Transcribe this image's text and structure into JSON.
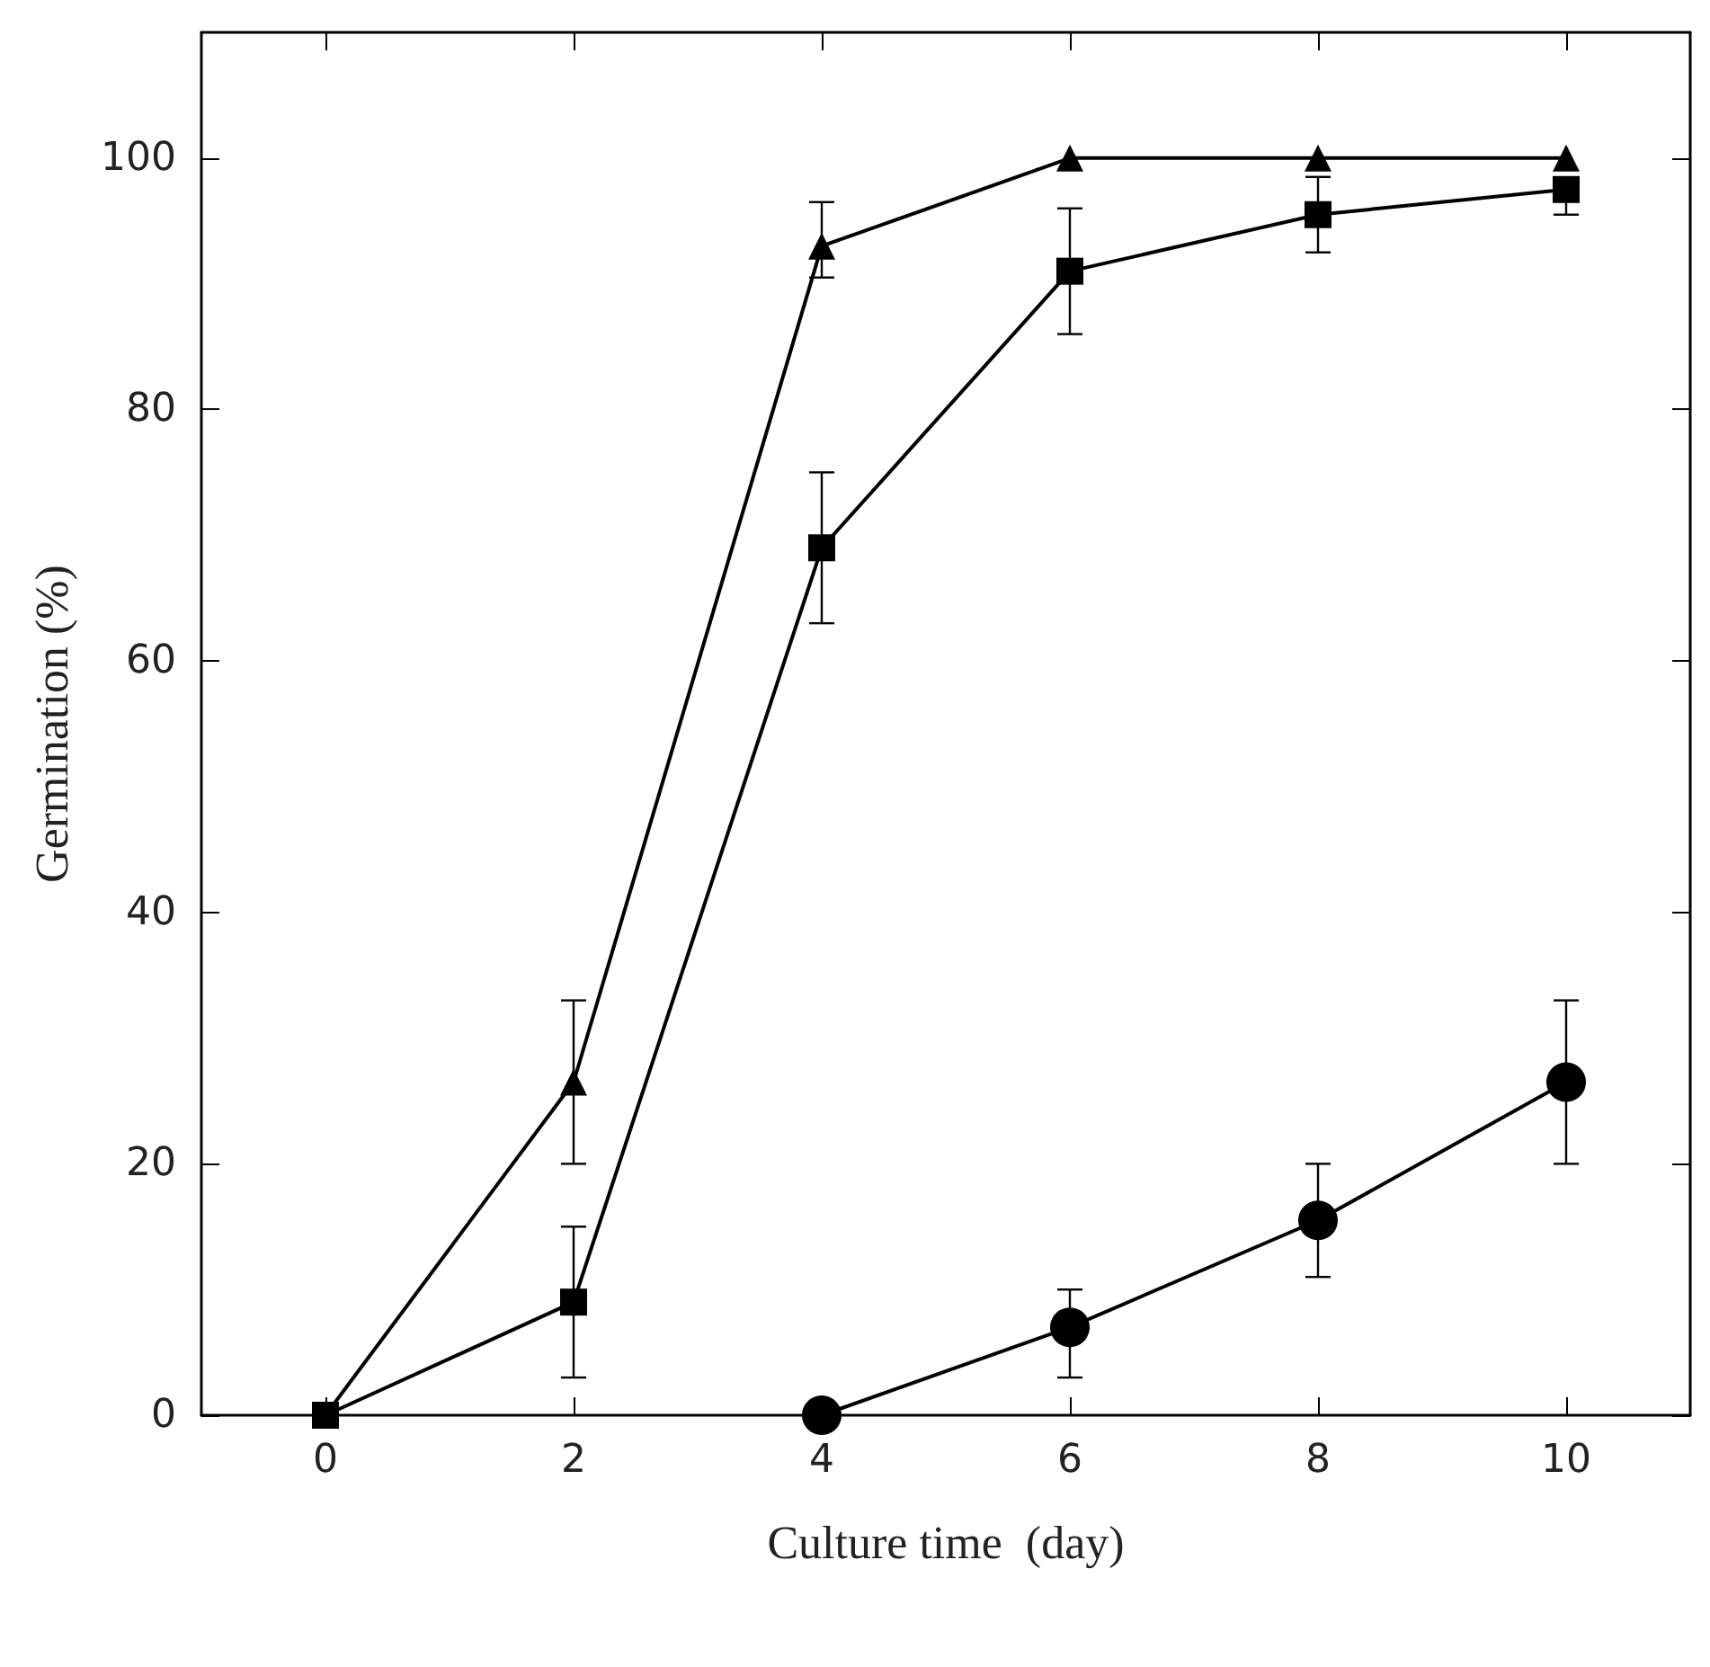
{
  "chart_data": {
    "type": "line",
    "xlabel": "Culture time  (day)",
    "ylabel": "Germination (%)",
    "xlim": [
      -1,
      11
    ],
    "xticks": [
      0,
      2,
      4,
      6,
      8,
      10
    ],
    "ylim": [
      0,
      110
    ],
    "yticks": [
      0,
      20,
      40,
      60,
      80,
      100
    ],
    "grid": false,
    "line_style": "solid",
    "series": [
      {
        "color": "#000000",
        "marker": "square",
        "x": [
          0,
          2,
          4,
          6,
          8,
          10
        ],
        "values": [
          0,
          9,
          69,
          91,
          95.5,
          97.5
        ],
        "errors": [
          null,
          [
            3,
            15
          ],
          [
            63,
            75
          ],
          [
            86,
            96
          ],
          [
            92.5,
            98.5
          ],
          [
            95.5,
            97.5
          ]
        ]
      },
      {
        "color": "#000000",
        "marker": "triangle",
        "x": [
          0,
          2,
          4,
          6,
          8,
          10
        ],
        "values": [
          0,
          26.5,
          93,
          100,
          100,
          100
        ],
        "errors": [
          null,
          [
            20,
            33
          ],
          [
            90.5,
            96.5
          ],
          null,
          null,
          null
        ]
      },
      {
        "color": "#000000",
        "marker": "circle",
        "x": [
          4,
          6,
          8,
          10
        ],
        "values": [
          0,
          7,
          15.5,
          26.5
        ],
        "errors": [
          null,
          [
            3,
            10
          ],
          [
            11,
            20
          ],
          [
            20,
            33
          ]
        ]
      }
    ]
  }
}
